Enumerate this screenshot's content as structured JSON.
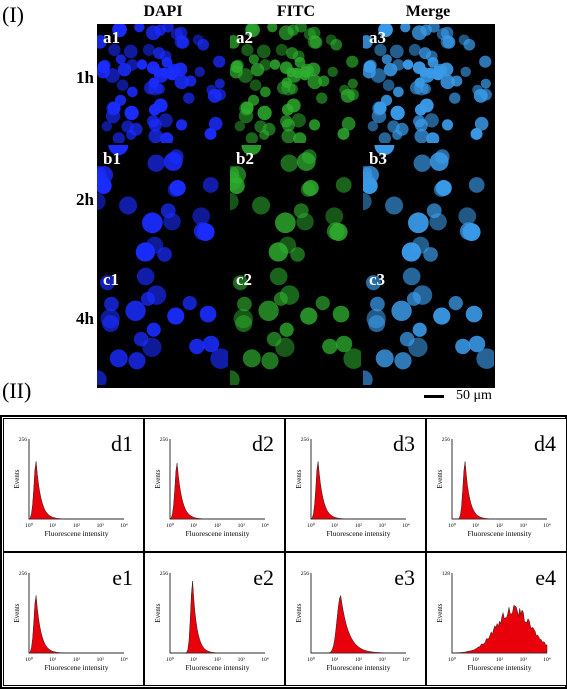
{
  "figure": {
    "section_1": "(I)",
    "section_2": "(II)",
    "columns": [
      "DAPI",
      "FITC",
      "Merge"
    ],
    "rows": [
      "1h",
      "2h",
      "4h"
    ],
    "panel_tags": [
      [
        "a1",
        "a2",
        "a3"
      ],
      [
        "b1",
        "b2",
        "b3"
      ],
      [
        "c1",
        "c2",
        "c3"
      ]
    ],
    "scale_bar": "50 μm",
    "channel_colors": {
      "dapi": "#1a2cff",
      "fitc": "#2fb02f",
      "merge": "#3a9ae8",
      "histogram": "#e8000b"
    }
  },
  "chart_data": [
    {
      "type": "area",
      "panel": "d1",
      "ylabel": "Events",
      "xlabel": "Fluorescene intensity",
      "ymax_tick": "256",
      "x_ticks": [
        "10⁰",
        "10¹",
        "10²",
        "10³",
        "10⁴"
      ],
      "peak_log10": 0.3,
      "peak_height": 0.72,
      "width": 0.18
    },
    {
      "type": "area",
      "panel": "d2",
      "ylabel": "Events",
      "xlabel": "Fluorescene intensity",
      "ymax_tick": "256",
      "x_ticks": [
        "10⁰",
        "10¹",
        "10²",
        "10³",
        "10⁴"
      ],
      "peak_log10": 0.3,
      "peak_height": 0.7,
      "width": 0.18
    },
    {
      "type": "area",
      "panel": "d3",
      "ylabel": "Events",
      "xlabel": "Fluorescene intensity",
      "ymax_tick": "256",
      "x_ticks": [
        "10⁰",
        "10¹",
        "10²",
        "10³",
        "10⁴"
      ],
      "peak_log10": 0.3,
      "peak_height": 0.72,
      "width": 0.18
    },
    {
      "type": "area",
      "panel": "d4",
      "ylabel": "Events",
      "xlabel": "Fluorescene intensity",
      "ymax_tick": "256",
      "x_ticks": [
        "10⁰",
        "10¹",
        "10²",
        "10³",
        "10⁴"
      ],
      "peak_log10": 0.55,
      "peak_height": 0.72,
      "width": 0.17
    },
    {
      "type": "area",
      "panel": "e1",
      "ylabel": "Events",
      "xlabel": "Fluorescene intensity",
      "ymax_tick": "256",
      "x_ticks": [
        "10⁰",
        "10¹",
        "10²",
        "10³",
        "10⁴"
      ],
      "peak_log10": 0.3,
      "peak_height": 0.72,
      "width": 0.18
    },
    {
      "type": "area",
      "panel": "e2",
      "ylabel": "Events",
      "xlabel": "Fluorescene intensity",
      "ymax_tick": "256",
      "x_ticks": [
        "10⁰",
        "10¹",
        "10²",
        "10³",
        "10⁴"
      ],
      "peak_log10": 0.95,
      "peak_height": 0.9,
      "width": 0.16
    },
    {
      "type": "area",
      "panel": "e3",
      "ylabel": "Events",
      "xlabel": "Fluorescene intensity",
      "ymax_tick": "256",
      "x_ticks": [
        "10⁰",
        "10¹",
        "10²",
        "10³",
        "10⁴"
      ],
      "peak_log10": 1.25,
      "peak_height": 0.72,
      "width": 0.3
    },
    {
      "type": "area",
      "panel": "e4",
      "ylabel": "Events",
      "xlabel": "Fluorescene intensity",
      "ymax_tick": "128",
      "x_ticks": [
        "10⁰",
        "10¹",
        "10²",
        "10³",
        "10⁴"
      ],
      "peak_log10": 2.6,
      "peak_height": 0.55,
      "width": 0.75
    }
  ]
}
